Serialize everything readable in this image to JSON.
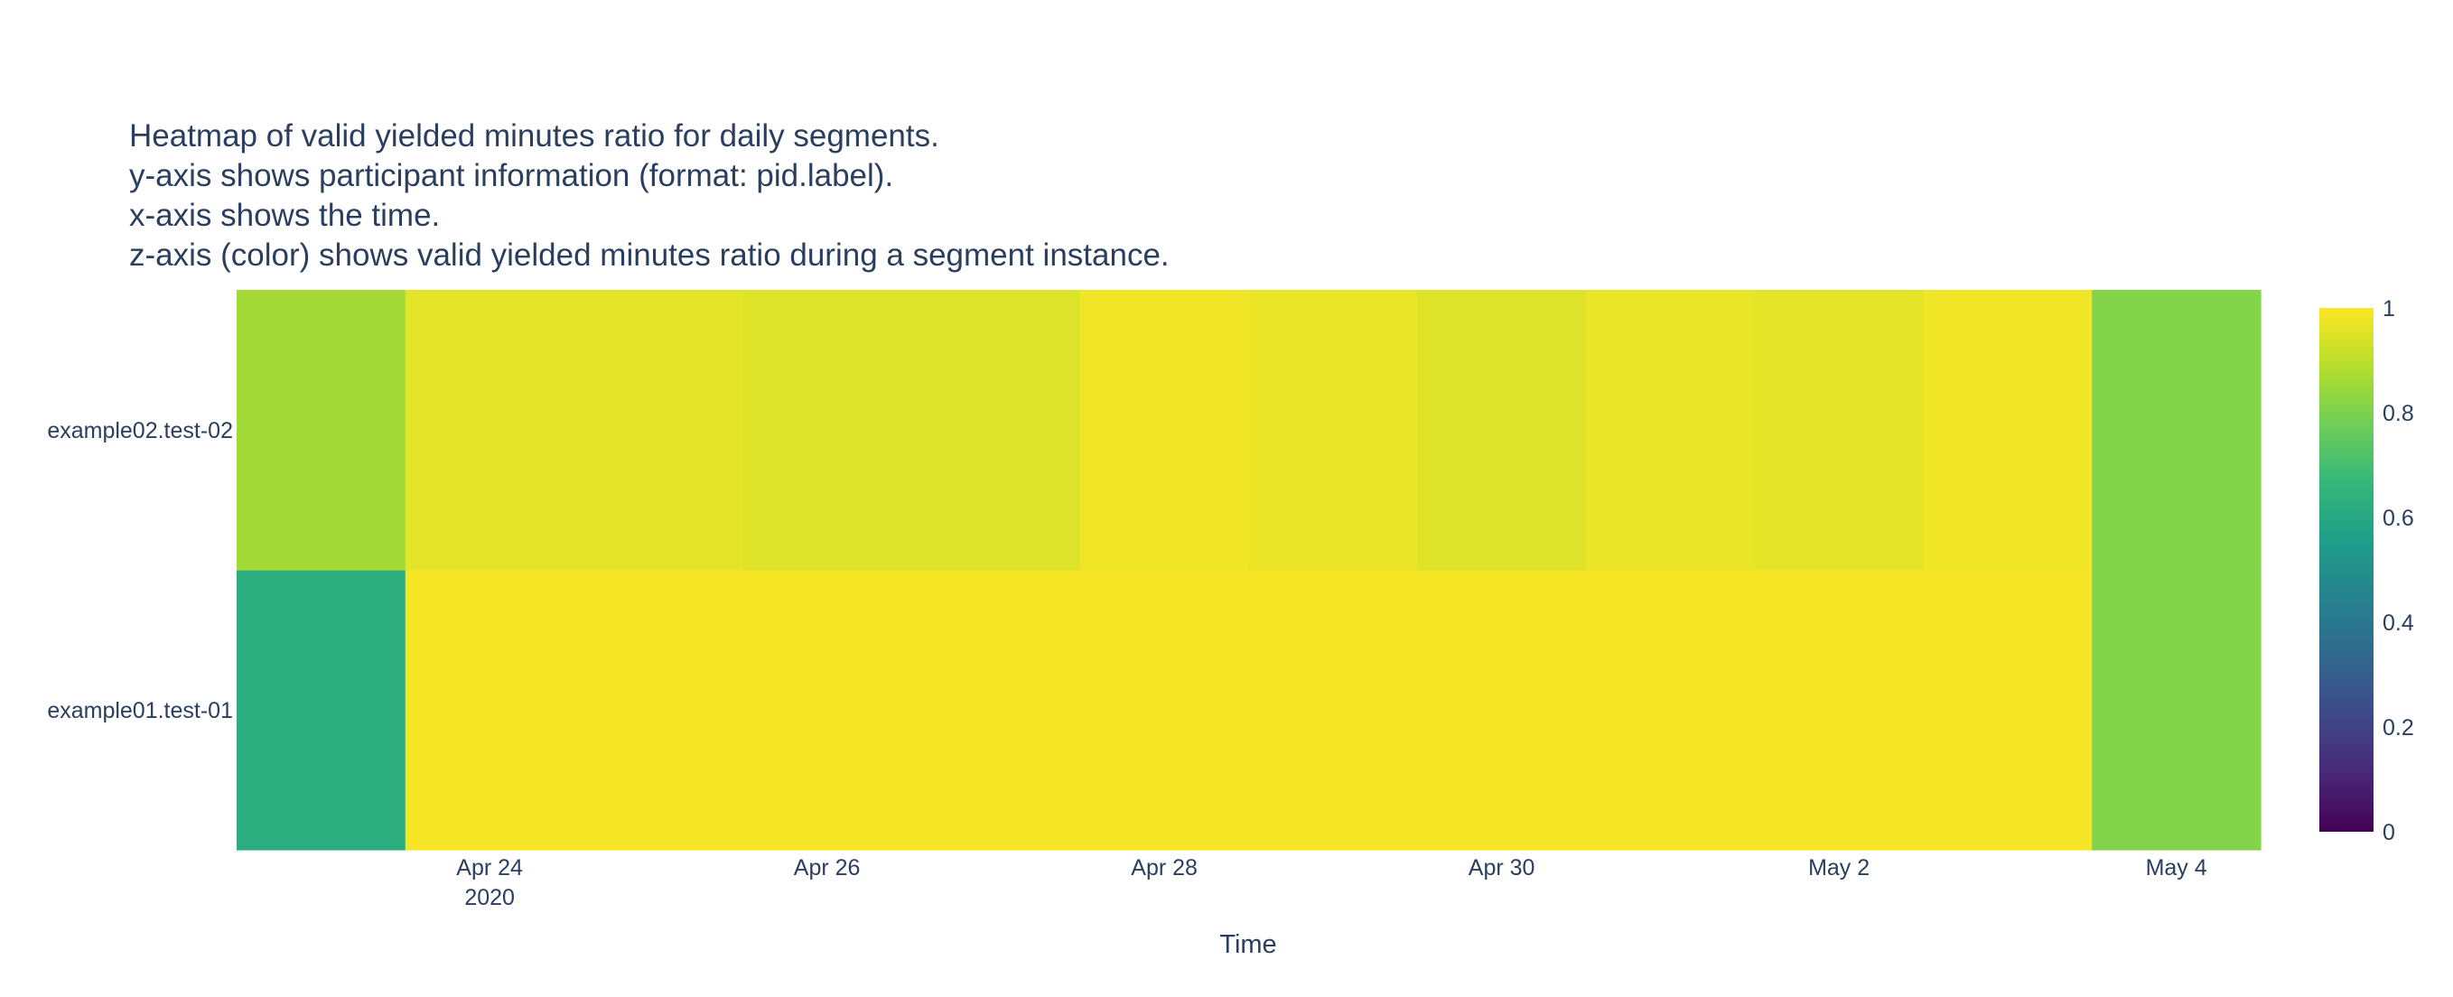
{
  "chart_data": {
    "type": "heatmap",
    "title_lines": [
      "Heatmap of valid yielded minutes ratio for daily segments.",
      "y-axis shows participant information (format: pid.label).",
      "x-axis shows the time.",
      "z-axis (color) shows valid yielded minutes ratio during a segment instance."
    ],
    "xlabel": "Time",
    "ylabel": "",
    "x": [
      "2020-04-23",
      "2020-04-24",
      "2020-04-25",
      "2020-04-26",
      "2020-04-27",
      "2020-04-28",
      "2020-04-29",
      "2020-04-30",
      "2020-05-01",
      "2020-05-02",
      "2020-05-03",
      "2020-05-04"
    ],
    "y": [
      "example01.test-01",
      "example02.test-02"
    ],
    "z": [
      [
        0.62,
        0.99,
        0.99,
        0.99,
        0.99,
        0.99,
        0.99,
        0.99,
        0.99,
        0.99,
        0.99,
        0.81
      ],
      [
        0.86,
        0.96,
        0.96,
        0.95,
        0.95,
        0.98,
        0.97,
        0.95,
        0.97,
        0.96,
        0.98,
        0.81
      ]
    ],
    "x_tick_labels": [
      {
        "date": "2020-04-24",
        "label": "Apr 24",
        "sublabel": "2020"
      },
      {
        "date": "2020-04-26",
        "label": "Apr 26",
        "sublabel": ""
      },
      {
        "date": "2020-04-28",
        "label": "Apr 28",
        "sublabel": ""
      },
      {
        "date": "2020-04-30",
        "label": "Apr 30",
        "sublabel": ""
      },
      {
        "date": "2020-05-02",
        "label": "May 2",
        "sublabel": ""
      },
      {
        "date": "2020-05-04",
        "label": "May 4",
        "sublabel": ""
      }
    ],
    "colorscale": {
      "name": "Viridis",
      "range": [
        0,
        1
      ],
      "ticks": [
        "0",
        "0.2",
        "0.4",
        "0.6",
        "0.8",
        "1"
      ],
      "stops": [
        "#440154",
        "#482878",
        "#3e4989",
        "#31688e",
        "#26828e",
        "#1f9e89",
        "#35b779",
        "#6ece58",
        "#b5de2b",
        "#fde725"
      ]
    },
    "grid": false
  }
}
